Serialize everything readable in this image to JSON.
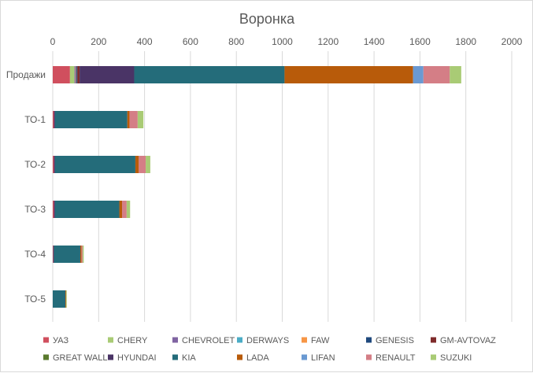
{
  "chart_data": {
    "type": "bar",
    "orientation": "horizontal",
    "stacked": true,
    "title": "Воронка",
    "xlabel": "",
    "ylabel": "",
    "xlim": [
      0,
      2000
    ],
    "xticks": [
      0,
      200,
      400,
      600,
      800,
      1000,
      1200,
      1400,
      1600,
      1800,
      2000
    ],
    "x_axis_position": "top",
    "grid": true,
    "legend_position": "bottom",
    "categories": [
      "Продажи",
      "ТО-1",
      "ТО-2",
      "ТО-3",
      "ТО-4",
      "ТО-5"
    ],
    "series": [
      {
        "name": "УАЗ",
        "color": "#D04F5E",
        "values": [
          75,
          5,
          5,
          5,
          2,
          0
        ]
      },
      {
        "name": "CHERY",
        "color": "#A9CB75",
        "values": [
          20,
          0,
          0,
          0,
          0,
          0
        ]
      },
      {
        "name": "CHEVROLET",
        "color": "#8064A2",
        "values": [
          5,
          0,
          0,
          0,
          0,
          0
        ]
      },
      {
        "name": "DERWAYS",
        "color": "#4BACC6",
        "values": [
          0,
          0,
          0,
          0,
          0,
          0
        ]
      },
      {
        "name": "FAW",
        "color": "#F79646",
        "values": [
          2,
          0,
          0,
          0,
          0,
          0
        ]
      },
      {
        "name": "GENESIS",
        "color": "#1F497D",
        "values": [
          5,
          0,
          0,
          0,
          0,
          0
        ]
      },
      {
        "name": "GM-AVTOVAZ",
        "color": "#7F2B2B",
        "values": [
          10,
          0,
          0,
          0,
          0,
          0
        ]
      },
      {
        "name": "GREAT WALL",
        "color": "#5A7A2E",
        "values": [
          0,
          0,
          0,
          0,
          0,
          0
        ]
      },
      {
        "name": "HYUNDAI",
        "color": "#4A3466",
        "values": [
          238,
          5,
          5,
          5,
          3,
          0
        ]
      },
      {
        "name": "KIA",
        "color": "#246C7A",
        "values": [
          655,
          315,
          350,
          280,
          115,
          55
        ]
      },
      {
        "name": "LADA",
        "color": "#B85B0A",
        "values": [
          560,
          10,
          15,
          12,
          5,
          3
        ]
      },
      {
        "name": "LIFAN",
        "color": "#6A99D2",
        "values": [
          45,
          0,
          0,
          0,
          0,
          0
        ]
      },
      {
        "name": "RENAULT",
        "color": "#D47E86",
        "values": [
          115,
          35,
          30,
          20,
          5,
          0
        ]
      },
      {
        "name": "SUZUKI",
        "color": "#A9CB75",
        "values": [
          50,
          25,
          20,
          15,
          5,
          3
        ]
      }
    ]
  }
}
